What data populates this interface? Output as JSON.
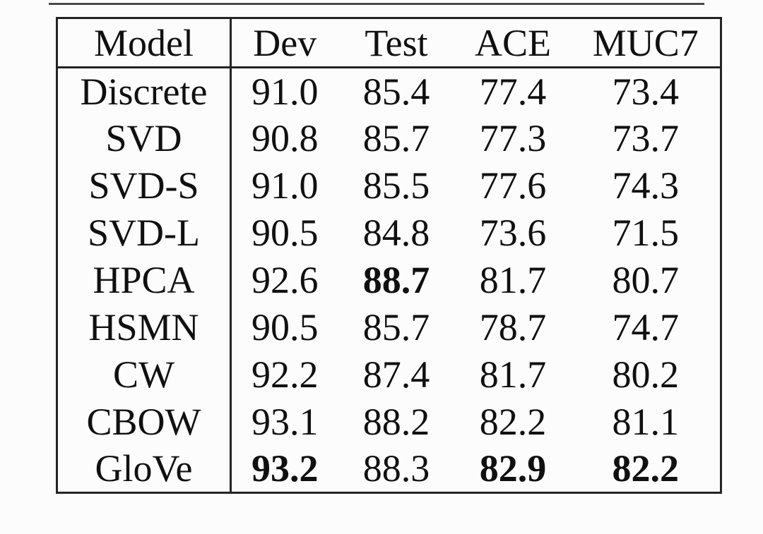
{
  "table": {
    "columns": [
      "Model",
      "Dev",
      "Test",
      "ACE",
      "MUC7"
    ],
    "rows": [
      {
        "model": "Discrete",
        "values": [
          "91.0",
          "85.4",
          "77.4",
          "73.4"
        ],
        "bold": [
          false,
          false,
          false,
          false
        ]
      },
      {
        "model": "SVD",
        "values": [
          "90.8",
          "85.7",
          "77.3",
          "73.7"
        ],
        "bold": [
          false,
          false,
          false,
          false
        ]
      },
      {
        "model": "SVD-S",
        "values": [
          "91.0",
          "85.5",
          "77.6",
          "74.3"
        ],
        "bold": [
          false,
          false,
          false,
          false
        ]
      },
      {
        "model": "SVD-L",
        "values": [
          "90.5",
          "84.8",
          "73.6",
          "71.5"
        ],
        "bold": [
          false,
          false,
          false,
          false
        ]
      },
      {
        "model": "HPCA",
        "values": [
          "92.6",
          "88.7",
          "81.7",
          "80.7"
        ],
        "bold": [
          false,
          true,
          false,
          false
        ]
      },
      {
        "model": "HSMN",
        "values": [
          "90.5",
          "85.7",
          "78.7",
          "74.7"
        ],
        "bold": [
          false,
          false,
          false,
          false
        ]
      },
      {
        "model": "CW",
        "values": [
          "92.2",
          "87.4",
          "81.7",
          "80.2"
        ],
        "bold": [
          false,
          false,
          false,
          false
        ]
      },
      {
        "model": "CBOW",
        "values": [
          "93.1",
          "88.2",
          "82.2",
          "81.1"
        ],
        "bold": [
          false,
          false,
          false,
          false
        ]
      },
      {
        "model": "GloVe",
        "values": [
          "93.2",
          "88.3",
          "82.9",
          "82.2"
        ],
        "bold": [
          true,
          false,
          true,
          true
        ]
      }
    ]
  },
  "colors": {
    "border": "#242424",
    "text": "#101010",
    "background": "#fcfcfc",
    "top_rule": "#4a4a4a"
  }
}
